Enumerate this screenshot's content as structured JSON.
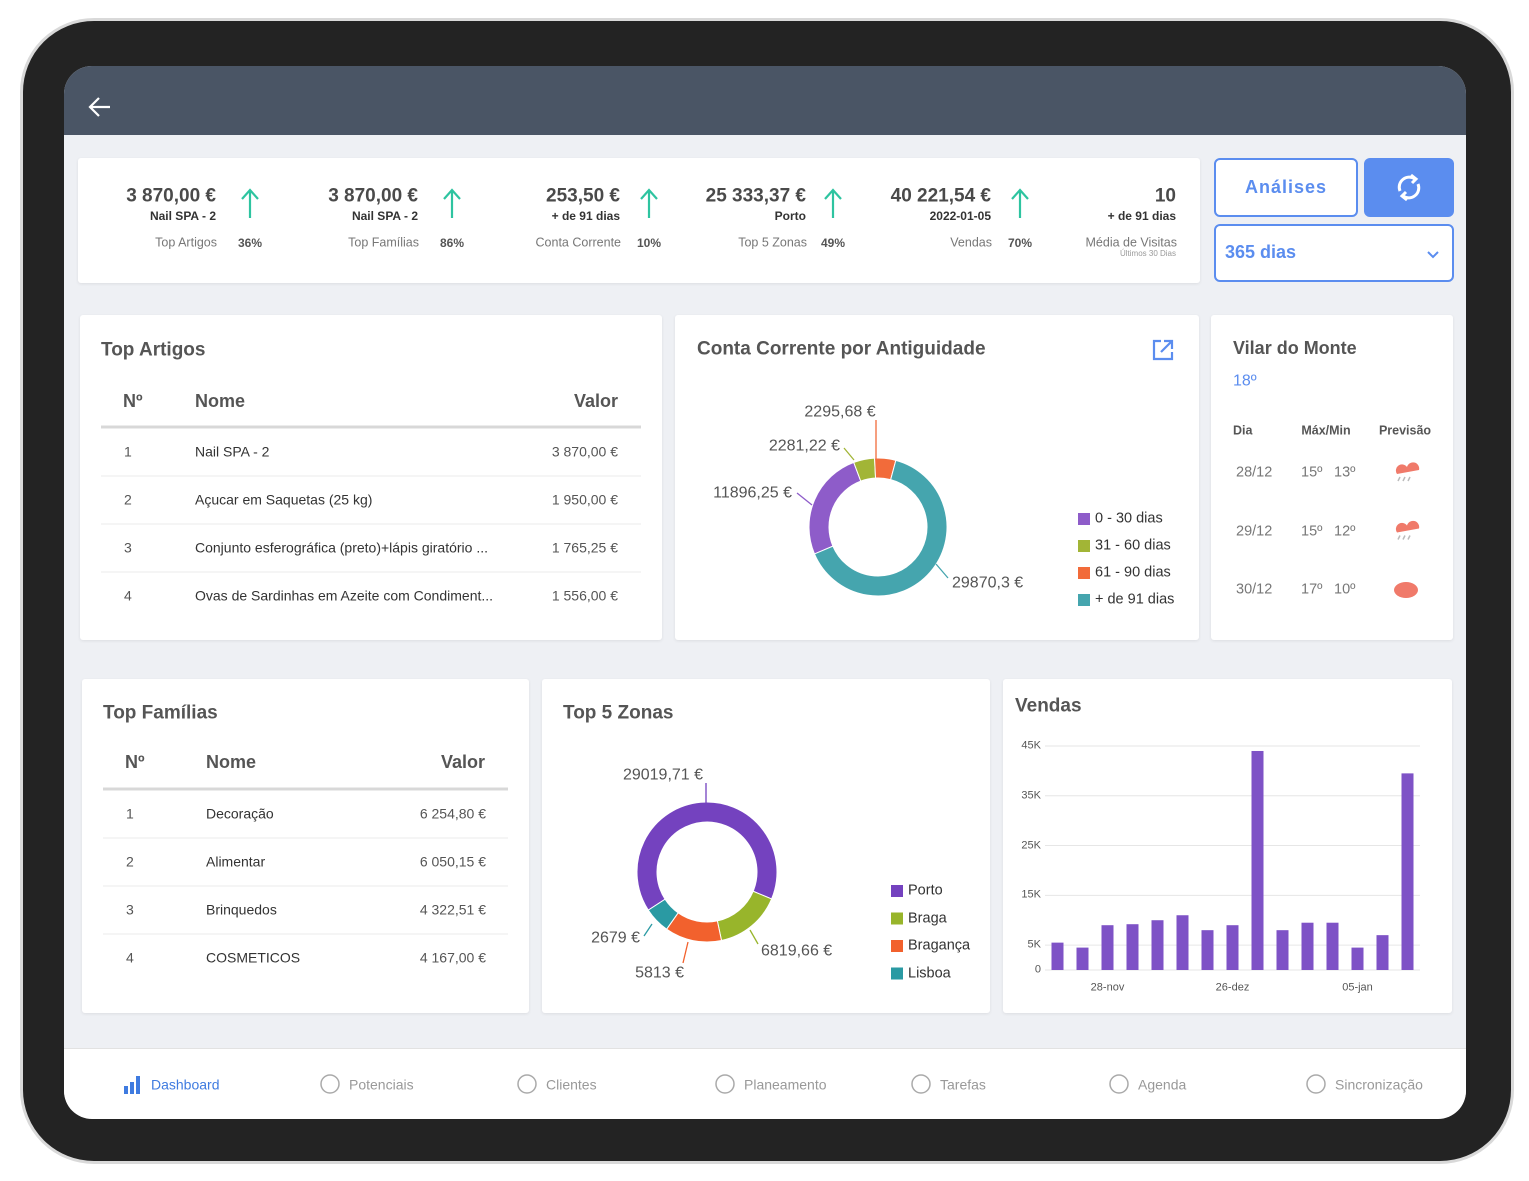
{
  "kpis": [
    {
      "value": "3 870,00 €",
      "sub": "Nail SPA - 2",
      "label": "Top Artigos",
      "pct": "36%"
    },
    {
      "value": "3 870,00 €",
      "sub": "Nail SPA - 2",
      "label": "Top Famílias",
      "pct": "86%"
    },
    {
      "value": "253,50 €",
      "sub": "+ de 91 dias",
      "label": "Conta Corrente",
      "pct": "10%"
    },
    {
      "value": "25 333,37 €",
      "sub": "Porto",
      "label": "Top 5 Zonas",
      "pct": "49%"
    },
    {
      "value": "40 221,54 €",
      "sub": "2022-01-05",
      "label": "Vendas",
      "pct": "70%"
    },
    {
      "value": "10",
      "sub": "+ de 91 dias",
      "label": "Média de Visitas",
      "note": "Últimos 30 Dias"
    }
  ],
  "toolbar": {
    "analises": "Análises",
    "period": "365 dias"
  },
  "top_artigos": {
    "title": "Top Artigos",
    "headers": [
      "Nº",
      "Nome",
      "Valor"
    ],
    "rows": [
      [
        "1",
        "Nail SPA - 2",
        "3 870,00 €"
      ],
      [
        "2",
        "Açucar em Saquetas (25 kg)",
        "1 950,00 €"
      ],
      [
        "3",
        "Conjunto esferográfica (preto)+lápis giratório ...",
        "1 765,25 €"
      ],
      [
        "4",
        "Ovas de Sardinhas em Azeite com Condiment...",
        "1 556,00 €"
      ]
    ]
  },
  "top_familias": {
    "title": "Top Famílias",
    "headers": [
      "Nº",
      "Nome",
      "Valor"
    ],
    "rows": [
      [
        "1",
        "Decoração",
        "6 254,80 €"
      ],
      [
        "2",
        "Alimentar",
        "6 050,15 €"
      ],
      [
        "3",
        "Brinquedos",
        "4 322,51 €"
      ],
      [
        "4",
        "COSMETICOS",
        "4 167,00 €"
      ]
    ]
  },
  "weather": {
    "city": "Vilar do Monte",
    "temp": "18º",
    "headers": [
      "Dia",
      "Máx/Min",
      "Previsão"
    ],
    "rows": [
      [
        "28/12",
        "15º",
        "13º"
      ],
      [
        "29/12",
        "15º",
        "12º"
      ],
      [
        "30/12",
        "17º",
        "10º"
      ]
    ]
  },
  "chart_data": [
    {
      "type": "pie",
      "title": "Conta Corrente por Antiguidade",
      "categories": [
        "0 - 30 dias",
        "31 - 60 dias",
        "61 - 90 dias",
        "+ de 91 dias"
      ],
      "values": [
        11896.25,
        2281.22,
        2295.68,
        29870.3
      ],
      "value_labels": [
        "11896,25 €",
        "2281,22 €",
        "2295,68 €",
        "29870,3 €"
      ],
      "colors": [
        "#8e5cc9",
        "#a2b536",
        "#f26b3a",
        "#45a5ae"
      ]
    },
    {
      "type": "pie",
      "title": "Top 5 Zonas",
      "categories": [
        "Porto",
        "Braga",
        "Bragança",
        "Lisboa"
      ],
      "values": [
        29019.71,
        6819.66,
        5813,
        2679
      ],
      "value_labels": [
        "29019,71 €",
        "6819,66 €",
        "5813 €",
        "2679 €"
      ],
      "colors": [
        "#7442bf",
        "#98b52b",
        "#f2612d",
        "#2a9aa3"
      ]
    },
    {
      "type": "bar",
      "title": "Vendas",
      "categories": [
        null,
        null,
        "28-nov",
        null,
        null,
        null,
        null,
        "26-dez",
        null,
        null,
        null,
        null,
        "05-jan",
        null,
        null
      ],
      "values": [
        5500,
        4500,
        9000,
        9200,
        10000,
        11000,
        8000,
        9000,
        44000,
        8000,
        9500,
        9500,
        4500,
        7000,
        39500
      ],
      "color": "#7e52c6",
      "ylim": [
        0,
        45000
      ],
      "yticks": [
        0,
        {
          "value": 5000,
          "label": "5K"
        },
        {
          "value": 15000,
          "label": "15K"
        },
        {
          "value": 25000,
          "label": "25K"
        },
        {
          "value": 35000,
          "label": "35K"
        },
        {
          "value": 45000,
          "label": "45K"
        }
      ],
      "grid": true
    }
  ],
  "nav": {
    "items": [
      "Dashboard",
      "Potenciais",
      "Clientes",
      "Planeamento",
      "Tarefas",
      "Agenda",
      "Sincronização"
    ]
  }
}
